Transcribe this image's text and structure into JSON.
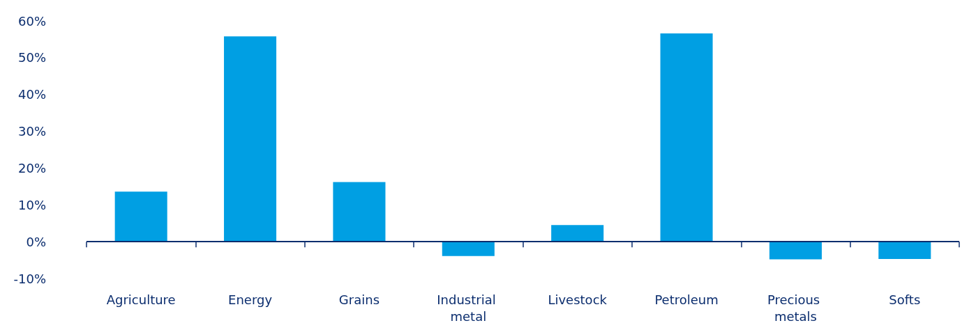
{
  "chart_data": {
    "type": "bar",
    "categories": [
      "Agriculture",
      "Energy",
      "Grains",
      "Industrial metal",
      "Livestock",
      "Petroleum",
      "Precious metals",
      "Softs"
    ],
    "values": [
      13.6,
      55.8,
      16.2,
      -3.9,
      4.5,
      56.6,
      -4.8,
      -4.7
    ],
    "color": "#009fe3",
    "ylim": [
      -10,
      60
    ],
    "yticks": [
      {
        "value": -10,
        "label": "-10%"
      },
      {
        "value": 0,
        "label": "0%"
      },
      {
        "value": 10,
        "label": "10%"
      },
      {
        "value": 20,
        "label": "20%"
      },
      {
        "value": 30,
        "label": "30%"
      },
      {
        "value": 40,
        "label": "40%"
      },
      {
        "value": 50,
        "label": "50%"
      },
      {
        "value": 60,
        "label": "60%"
      }
    ],
    "grid": false,
    "ref_lines": [
      {
        "axis": "y",
        "value": 0,
        "color": "#0b2d6e"
      }
    ]
  }
}
